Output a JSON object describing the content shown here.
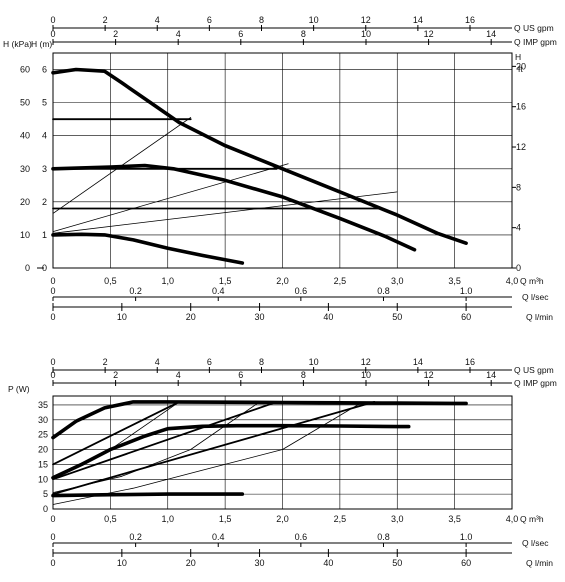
{
  "chart_data": [
    {
      "type": "line",
      "title": "",
      "left_axis": {
        "kpa": {
          "label": "H (kPa)",
          "ticks": [
            "0",
            "10",
            "20",
            "30",
            "40",
            "50",
            "60"
          ]
        },
        "m": {
          "label": "H (m)",
          "ticks": [
            "0",
            "1",
            "2",
            "3",
            "4",
            "5",
            "6"
          ]
        }
      },
      "right_axis": {
        "label_1": "H",
        "label_2": "ft",
        "ticks": [
          "0",
          "4",
          "8",
          "12",
          "16",
          "20"
        ]
      },
      "x_axes": {
        "us_gpm": {
          "label": "Q US gpm",
          "ticks": [
            "0",
            "2",
            "4",
            "6",
            "8",
            "10",
            "12",
            "14",
            "16"
          ]
        },
        "imp_gpm": {
          "label": "Q IMP gpm",
          "ticks": [
            "0",
            "2",
            "4",
            "6",
            "8",
            "10",
            "12",
            "14"
          ]
        },
        "m3h": {
          "label": "Q m³h",
          "ticks": [
            "0",
            "0,5",
            "1,0",
            "1,5",
            "2,0",
            "2,5",
            "3,0",
            "3,5",
            "4,0"
          ]
        },
        "lsec": {
          "label": "Q l/sec",
          "ticks": [
            "0",
            "0.2",
            "0.4",
            "0.6",
            "0.8",
            "1.0"
          ]
        },
        "lmin": {
          "label": "Q l/min",
          "ticks": [
            "0",
            "10",
            "20",
            "30",
            "40",
            "50",
            "60"
          ]
        }
      },
      "xlim_m3h": [
        0,
        4.0
      ],
      "ylim_m": [
        0,
        6.5
      ],
      "grid": true,
      "series": [
        {
          "x": [
            0,
            0.2,
            0.45,
            0.6,
            0.85,
            1.1,
            1.5,
            2.0,
            2.5,
            3.0,
            3.35,
            3.6
          ],
          "y": [
            5.9,
            6.0,
            5.95,
            5.6,
            5.0,
            4.4,
            3.7,
            3.0,
            2.3,
            1.6,
            1.05,
            0.75
          ]
        },
        {
          "x": [
            0,
            0.5,
            0.8,
            1.05,
            1.5,
            2.0,
            2.5,
            2.9,
            3.15
          ],
          "y": [
            3.0,
            3.05,
            3.1,
            3.0,
            2.65,
            2.15,
            1.5,
            0.95,
            0.55
          ]
        },
        {
          "x": [
            0,
            0.25,
            0.45,
            0.7,
            1.0,
            1.3,
            1.65
          ],
          "y": [
            1.0,
            1.02,
            1.0,
            0.85,
            0.6,
            0.38,
            0.15
          ]
        }
      ],
      "setting_lines": [
        {
          "x": [
            0,
            1.2
          ],
          "y": [
            4.5,
            4.5
          ]
        },
        {
          "x": [
            0,
            1.95
          ],
          "y": [
            3.0,
            3.0
          ]
        },
        {
          "x": [
            0,
            2.85
          ],
          "y": [
            1.8,
            1.8
          ]
        }
      ],
      "thin_lines": [
        {
          "x": [
            0,
            1.2
          ],
          "y": [
            1.65,
            4.55
          ]
        },
        {
          "x": [
            0,
            2.05
          ],
          "y": [
            1.1,
            3.15
          ]
        },
        {
          "x": [
            0,
            3.0
          ],
          "y": [
            1.05,
            2.3
          ]
        }
      ]
    },
    {
      "type": "line",
      "title": "",
      "ylabel": "P (W)",
      "yticks": [
        "0",
        "5",
        "10",
        "15",
        "20",
        "25",
        "30",
        "35"
      ],
      "ylim": [
        0,
        38
      ],
      "xlim_m3h": [
        0,
        4.0
      ],
      "grid": true,
      "x_axes": {
        "us_gpm": {
          "label": "Q US gpm",
          "ticks": [
            "0",
            "2",
            "4",
            "6",
            "8",
            "10",
            "12",
            "14",
            "16"
          ]
        },
        "imp_gpm": {
          "label": "Q IMP gpm",
          "ticks": [
            "0",
            "2",
            "4",
            "6",
            "8",
            "10",
            "12",
            "14"
          ]
        },
        "m3h": {
          "label": "Q m³h",
          "ticks": [
            "0",
            "0,5",
            "1,0",
            "1,5",
            "2,0",
            "2,5",
            "3,0",
            "3,5",
            "4,0"
          ]
        },
        "lsec": {
          "label": "Q l/sec",
          "ticks": [
            "0",
            "0.2",
            "0.4",
            "0.6",
            "0.8",
            "1.0"
          ]
        },
        "lmin": {
          "label": "Q l/min",
          "ticks": [
            "0",
            "10",
            "20",
            "30",
            "40",
            "50",
            "60"
          ]
        }
      },
      "series": [
        {
          "x": [
            0,
            0.2,
            0.45,
            0.7,
            1.0,
            1.5,
            2.0,
            2.5,
            3.0,
            3.5,
            3.6
          ],
          "y": [
            24,
            29.5,
            34,
            36,
            36,
            35.9,
            35.8,
            35.7,
            35.6,
            35.5,
            35.5
          ]
        },
        {
          "x": [
            0,
            0.25,
            0.5,
            0.8,
            1.0,
            1.3,
            1.6,
            2.0,
            2.5,
            3.0,
            3.1
          ],
          "y": [
            10.5,
            15,
            20,
            24.5,
            27,
            27.8,
            28,
            28,
            27.9,
            27.7,
            27.7
          ]
        },
        {
          "x": [
            0,
            0.5,
            1.0,
            1.65
          ],
          "y": [
            4.5,
            4.8,
            5.0,
            5.0
          ]
        }
      ],
      "setting_lines": [
        {
          "x": [
            0,
            1.1
          ],
          "y": [
            15,
            36
          ]
        },
        {
          "x": [
            0,
            1.95
          ],
          "y": [
            10,
            36
          ]
        },
        {
          "x": [
            0,
            2.8
          ],
          "y": [
            5,
            36
          ]
        }
      ],
      "thin_lines": [
        {
          "x": [
            0,
            0.5,
            1.1
          ],
          "y": [
            11,
            20,
            36
          ]
        },
        {
          "x": [
            0,
            0.6,
            1.2,
            1.8
          ],
          "y": [
            5.5,
            11,
            20,
            36
          ]
        },
        {
          "x": [
            0,
            0.7,
            1.3,
            2.0,
            2.7
          ],
          "y": [
            1.5,
            7,
            13,
            20,
            36
          ]
        }
      ]
    }
  ]
}
